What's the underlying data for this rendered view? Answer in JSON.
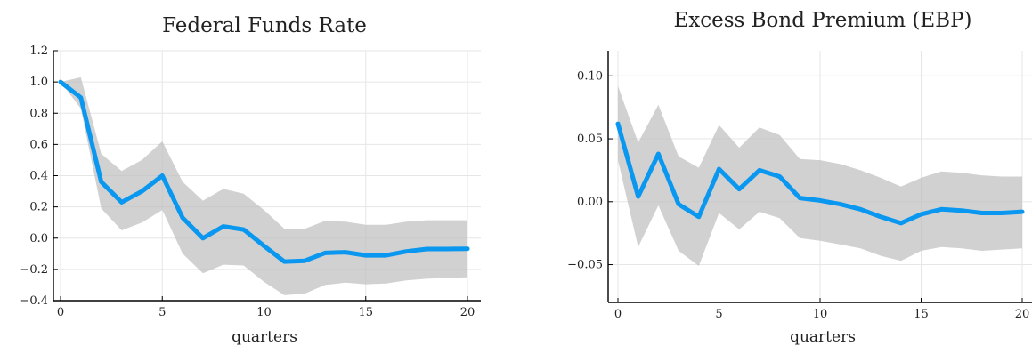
{
  "chart_data": [
    {
      "type": "area",
      "title": "Federal Funds Rate",
      "xlabel": "quarters",
      "ylabel": "",
      "xlim": [
        0,
        20
      ],
      "ylim": [
        -0.4,
        1.2
      ],
      "xticks": [
        0,
        5,
        10,
        15,
        20
      ],
      "yticks": [
        -0.4,
        -0.2,
        0.0,
        0.2,
        0.4,
        0.6,
        0.8,
        1.0,
        1.2
      ],
      "ytick_labels": [
        "−0.4",
        "−0.2",
        "0.0",
        "0.2",
        "0.4",
        "0.6",
        "0.8",
        "1.0",
        "1.2"
      ],
      "xtick_labels": [
        "0",
        "5",
        "10",
        "15",
        "20"
      ],
      "grid": true,
      "x": [
        0,
        1,
        2,
        3,
        4,
        5,
        6,
        7,
        8,
        9,
        10,
        11,
        12,
        13,
        14,
        15,
        16,
        17,
        18,
        19,
        20
      ],
      "series": [
        {
          "values": [
            1.0,
            0.9,
            0.36,
            0.23,
            0.3,
            0.4,
            0.13,
            0.0,
            0.075,
            0.055,
            -0.05,
            -0.15,
            -0.145,
            -0.095,
            -0.09,
            -0.11,
            -0.11,
            -0.085,
            -0.07,
            -0.07,
            -0.068
          ],
          "lower": [
            1.0,
            0.83,
            0.19,
            0.05,
            0.1,
            0.18,
            -0.1,
            -0.225,
            -0.17,
            -0.175,
            -0.28,
            -0.365,
            -0.355,
            -0.3,
            -0.285,
            -0.295,
            -0.29,
            -0.27,
            -0.26,
            -0.255,
            -0.25
          ],
          "upper": [
            1.0,
            1.03,
            0.54,
            0.43,
            0.5,
            0.62,
            0.36,
            0.24,
            0.315,
            0.285,
            0.18,
            0.06,
            0.06,
            0.11,
            0.105,
            0.085,
            0.085,
            0.105,
            0.115,
            0.115,
            0.115
          ],
          "color": "#0a97f0"
        }
      ]
    },
    {
      "type": "area",
      "title": "Excess Bond Premium (EBP)",
      "xlabel": "quarters",
      "ylabel": "",
      "xlim": [
        0,
        20
      ],
      "ylim": [
        -0.08,
        0.12
      ],
      "xticks": [
        0,
        5,
        10,
        15,
        20
      ],
      "yticks": [
        -0.05,
        0.0,
        0.05,
        0.1
      ],
      "ytick_labels": [
        "−0.05",
        "0.00",
        "0.05",
        "0.10"
      ],
      "xtick_labels": [
        "0",
        "5",
        "10",
        "15",
        "20"
      ],
      "grid": true,
      "x": [
        0,
        1,
        2,
        3,
        4,
        5,
        6,
        7,
        8,
        9,
        10,
        11,
        12,
        13,
        14,
        15,
        16,
        17,
        18,
        19,
        20
      ],
      "series": [
        {
          "values": [
            0.062,
            0.004,
            0.038,
            -0.002,
            -0.012,
            0.026,
            0.01,
            0.025,
            0.02,
            0.003,
            0.001,
            -0.002,
            -0.006,
            -0.012,
            -0.017,
            -0.01,
            -0.006,
            -0.007,
            -0.009,
            -0.009,
            -0.008
          ],
          "lower": [
            0.033,
            -0.036,
            -0.003,
            -0.039,
            -0.051,
            -0.009,
            -0.022,
            -0.008,
            -0.013,
            -0.029,
            -0.031,
            -0.034,
            -0.037,
            -0.043,
            -0.047,
            -0.039,
            -0.036,
            -0.037,
            -0.039,
            -0.038,
            -0.037
          ],
          "upper": [
            0.092,
            0.047,
            0.077,
            0.036,
            0.027,
            0.061,
            0.043,
            0.059,
            0.053,
            0.034,
            0.033,
            0.03,
            0.025,
            0.019,
            0.012,
            0.019,
            0.024,
            0.023,
            0.021,
            0.02,
            0.02
          ],
          "color": "#0a97f0"
        }
      ]
    }
  ]
}
